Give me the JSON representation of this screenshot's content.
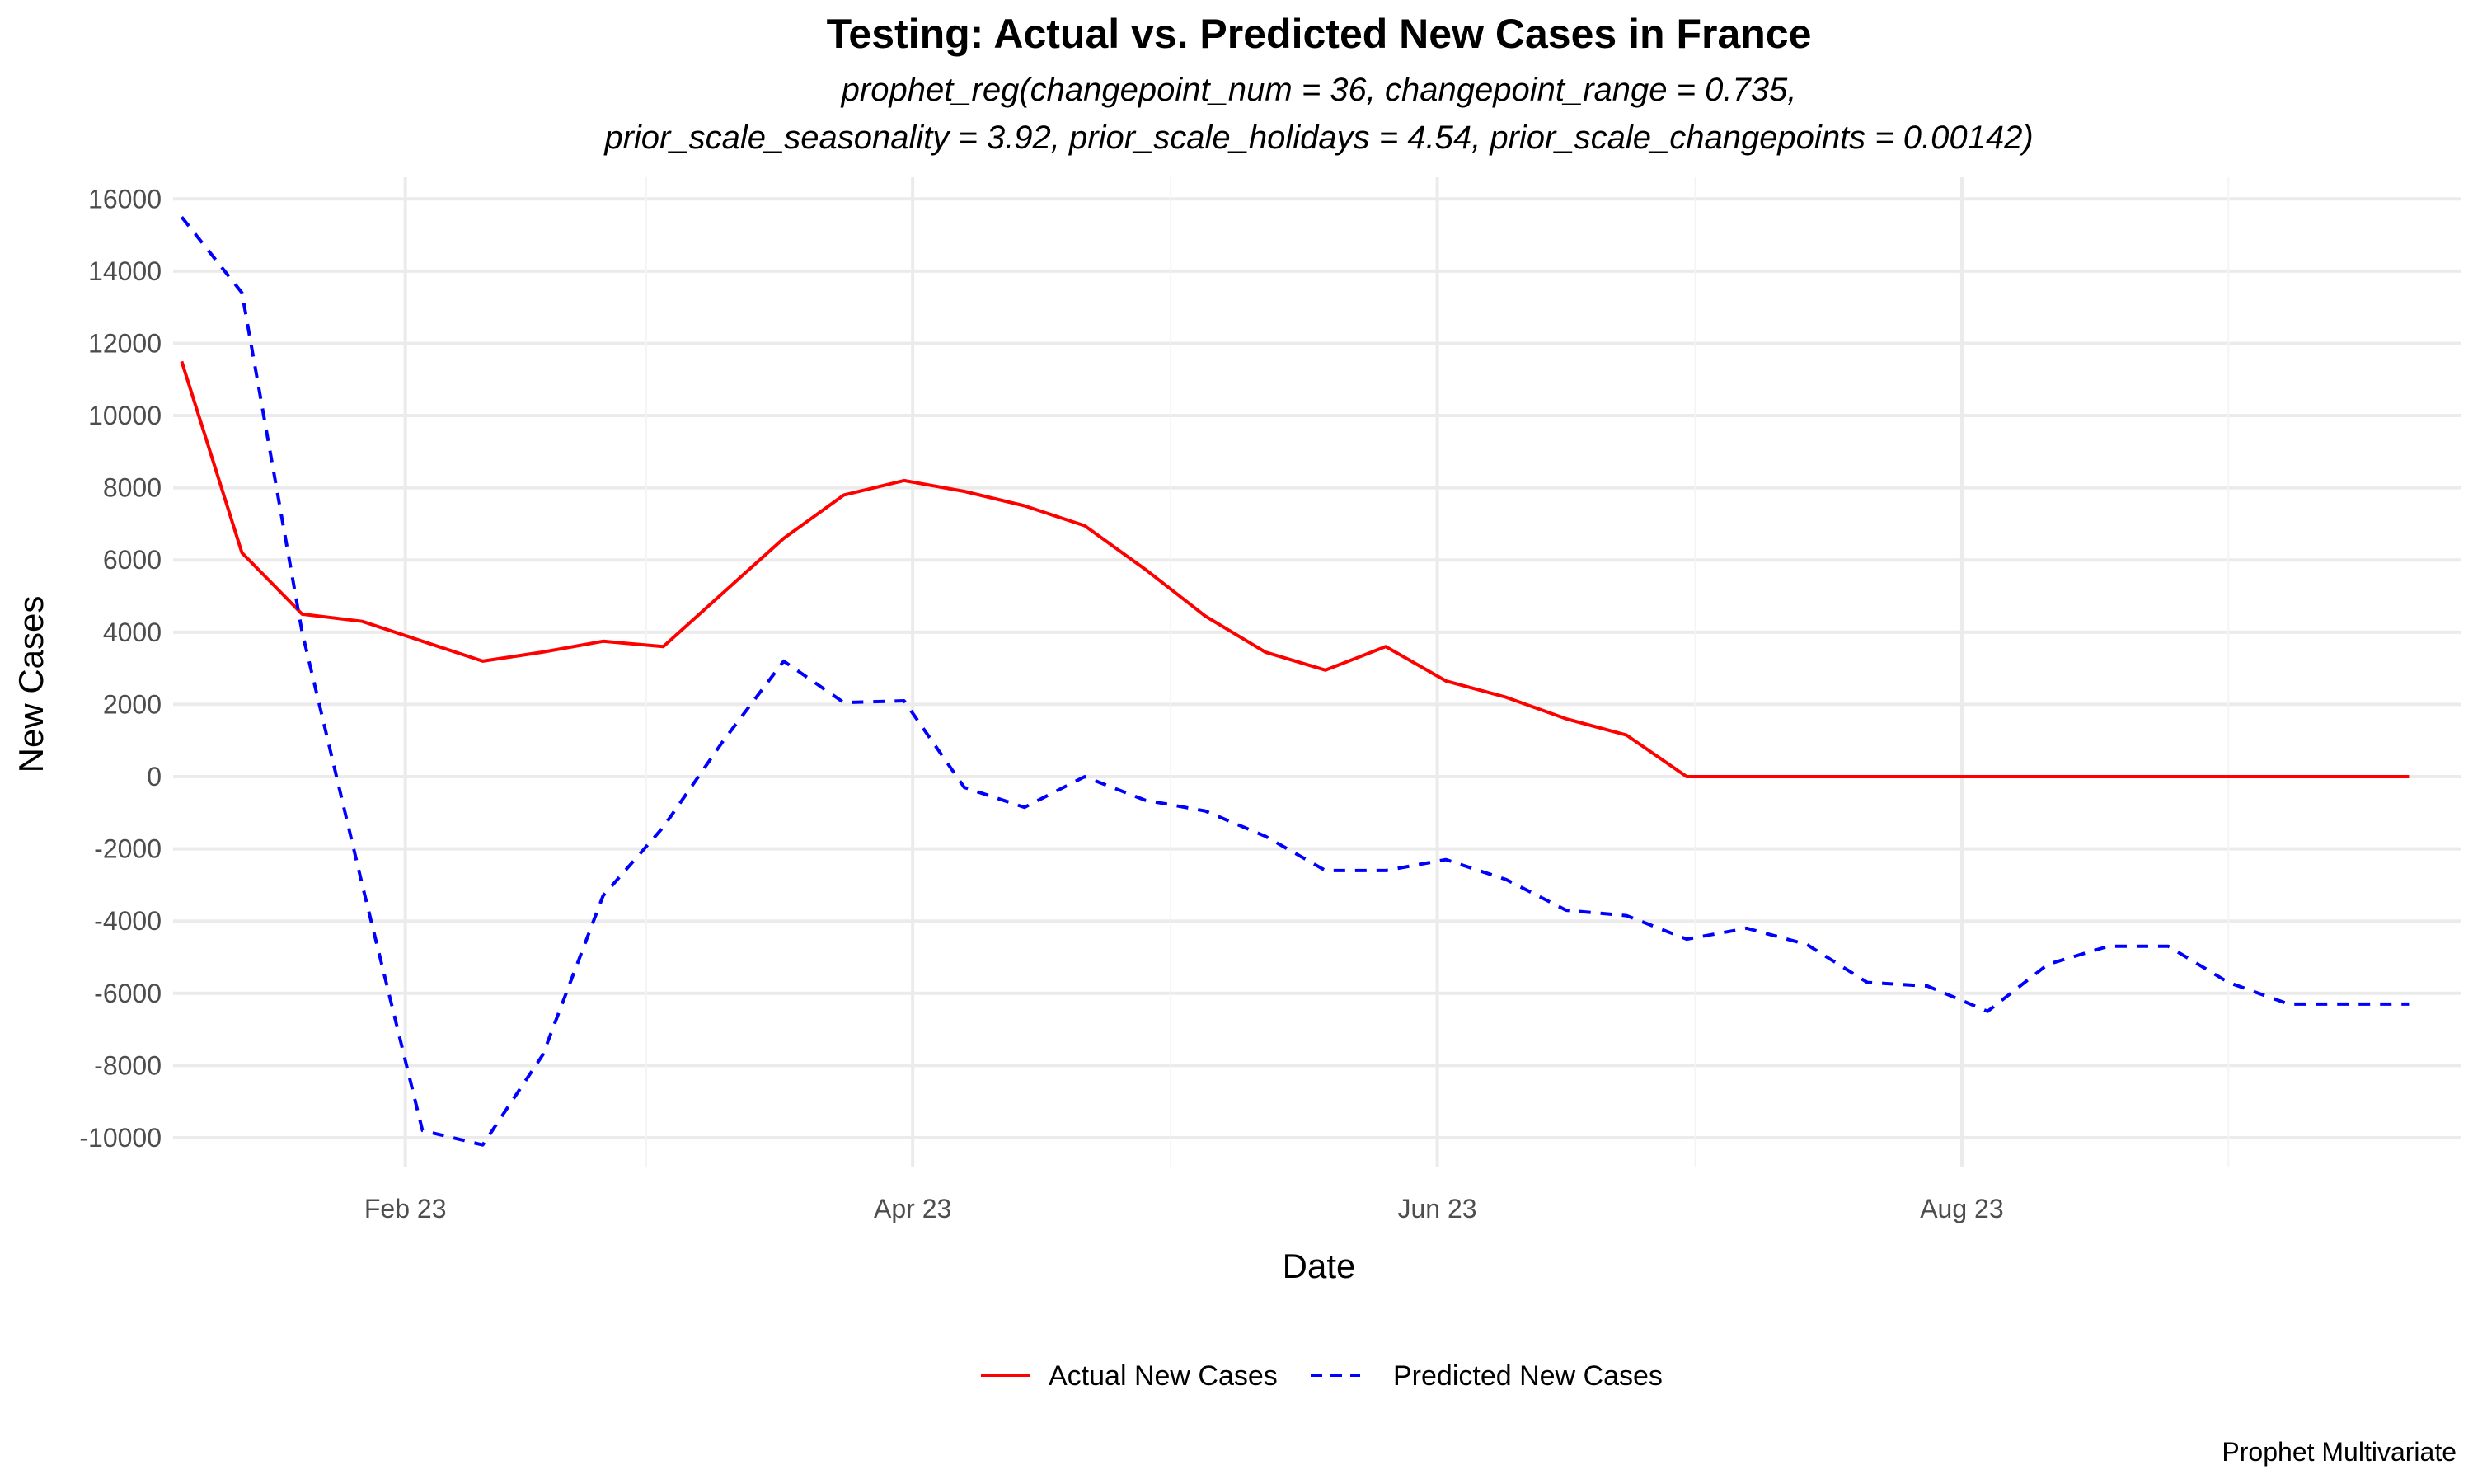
{
  "chart_data": {
    "type": "line",
    "title": "Testing: Actual vs. Predicted New Cases in France",
    "subtitle_lines": [
      "prophet_reg(changepoint_num = 36, changepoint_range = 0.735,",
      "prior_scale_seasonality = 3.92, prior_scale_holidays = 4.54, prior_scale_changepoints = 0.00142)"
    ],
    "xlabel": "Date",
    "ylabel": "New Cases",
    "caption": "Prophet Multivariate",
    "xlim": [
      "2023-01-05",
      "2023-09-28"
    ],
    "ylim": [
      -10800,
      16600
    ],
    "x_ticks": [
      {
        "date": "2023-02-01",
        "label": "Feb 23"
      },
      {
        "date": "2023-04-01",
        "label": "Apr 23"
      },
      {
        "date": "2023-06-01",
        "label": "Jun 23"
      },
      {
        "date": "2023-08-01",
        "label": "Aug 23"
      }
    ],
    "y_ticks": [
      {
        "value": 16000,
        "label": "16000"
      },
      {
        "value": 14000,
        "label": "14000"
      },
      {
        "value": 12000,
        "label": "12000"
      },
      {
        "value": 10000,
        "label": "10000"
      },
      {
        "value": 8000,
        "label": "8000"
      },
      {
        "value": 6000,
        "label": "6000"
      },
      {
        "value": 4000,
        "label": "4000"
      },
      {
        "value": 2000,
        "label": "2000"
      },
      {
        "value": 0,
        "label": "0"
      },
      {
        "value": -2000,
        "label": "-2000"
      },
      {
        "value": -4000,
        "label": "-4000"
      },
      {
        "value": -6000,
        "label": "-6000"
      },
      {
        "value": -8000,
        "label": "-8000"
      },
      {
        "value": -10000,
        "label": "-10000"
      }
    ],
    "grid": true,
    "legend_position": "bottom",
    "series": [
      {
        "name": "Actual New Cases",
        "color": "#ff0000",
        "dash": "solid",
        "x": [
          "2023-01-06",
          "2023-01-13",
          "2023-01-20",
          "2023-01-27",
          "2023-02-03",
          "2023-02-10",
          "2023-02-17",
          "2023-02-24",
          "2023-03-03",
          "2023-03-10",
          "2023-03-17",
          "2023-03-24",
          "2023-03-31",
          "2023-04-07",
          "2023-04-14",
          "2023-04-21",
          "2023-04-28",
          "2023-05-05",
          "2023-05-12",
          "2023-05-19",
          "2023-05-26",
          "2023-06-02",
          "2023-06-09",
          "2023-06-16",
          "2023-06-23",
          "2023-06-30",
          "2023-07-07",
          "2023-07-14",
          "2023-07-21",
          "2023-07-28",
          "2023-08-04",
          "2023-08-11",
          "2023-08-18",
          "2023-08-25",
          "2023-09-01",
          "2023-09-08",
          "2023-09-15",
          "2023-09-22"
        ],
        "values": [
          11500,
          6200,
          4500,
          4300,
          3750,
          3200,
          3450,
          3750,
          3600,
          5100,
          6600,
          7800,
          8200,
          7900,
          7500,
          6950,
          5750,
          4450,
          3450,
          2950,
          3600,
          2650,
          2200,
          1600,
          1150,
          0,
          0,
          0,
          0,
          0,
          0,
          0,
          0,
          0,
          0,
          0,
          0,
          0
        ]
      },
      {
        "name": "Predicted New Cases",
        "color": "#0000ff",
        "dash": "dashed",
        "x": [
          "2023-01-06",
          "2023-01-13",
          "2023-01-20",
          "2023-01-27",
          "2023-02-03",
          "2023-02-10",
          "2023-02-17",
          "2023-02-24",
          "2023-03-03",
          "2023-03-10",
          "2023-03-17",
          "2023-03-24",
          "2023-03-31",
          "2023-04-07",
          "2023-04-14",
          "2023-04-21",
          "2023-04-28",
          "2023-05-05",
          "2023-05-12",
          "2023-05-19",
          "2023-05-26",
          "2023-06-02",
          "2023-06-09",
          "2023-06-16",
          "2023-06-23",
          "2023-06-30",
          "2023-07-07",
          "2023-07-14",
          "2023-07-21",
          "2023-07-28",
          "2023-08-04",
          "2023-08-11",
          "2023-08-18",
          "2023-08-25",
          "2023-09-01",
          "2023-09-08",
          "2023-09-15",
          "2023-09-22"
        ],
        "values": [
          15500,
          13400,
          4000,
          -3000,
          -9800,
          -10200,
          -7700,
          -3300,
          -1400,
          1000,
          3200,
          2050,
          2100,
          -300,
          -850,
          0,
          -650,
          -950,
          -1650,
          -2600,
          -2600,
          -2300,
          -2850,
          -3700,
          -3850,
          -4500,
          -4200,
          -4650,
          -5700,
          -5800,
          -6500,
          -5200,
          -4700,
          -4700,
          -5700,
          -6300,
          -6300,
          -6300
        ]
      }
    ]
  }
}
